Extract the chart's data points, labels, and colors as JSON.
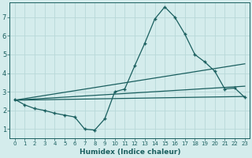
{
  "xlabel": "Humidex (Indice chaleur)",
  "ylabel": "",
  "background_color": "#d4ecec",
  "grid_color": "#b8d8d8",
  "line_color": "#1a5f5f",
  "xlim": [
    -0.5,
    23.5
  ],
  "ylim": [
    0.5,
    7.8
  ],
  "xticks": [
    0,
    1,
    2,
    3,
    4,
    5,
    6,
    7,
    8,
    9,
    10,
    11,
    12,
    13,
    14,
    15,
    16,
    17,
    18,
    19,
    20,
    21,
    22,
    23
  ],
  "yticks": [
    1,
    2,
    3,
    4,
    5,
    6,
    7
  ],
  "line1_x": [
    0,
    1,
    2,
    3,
    4,
    5,
    6,
    7,
    8,
    9,
    10,
    11,
    12,
    13,
    14,
    15,
    16,
    17,
    18,
    19,
    20,
    21,
    22,
    23
  ],
  "line1_y": [
    2.6,
    2.3,
    2.1,
    2.0,
    1.85,
    1.75,
    1.65,
    1.0,
    0.95,
    1.55,
    3.0,
    3.15,
    4.4,
    5.6,
    6.9,
    7.55,
    7.0,
    6.1,
    5.0,
    4.6,
    4.1,
    3.15,
    3.2,
    2.7
  ],
  "line2_x": [
    0,
    23
  ],
  "line2_y": [
    2.55,
    2.75
  ],
  "line3_x": [
    0,
    23
  ],
  "line3_y": [
    2.55,
    3.3
  ],
  "line4_x": [
    0,
    23
  ],
  "line4_y": [
    2.55,
    4.5
  ],
  "marker_style": "+",
  "marker_size": 3.5,
  "line_width": 0.9
}
